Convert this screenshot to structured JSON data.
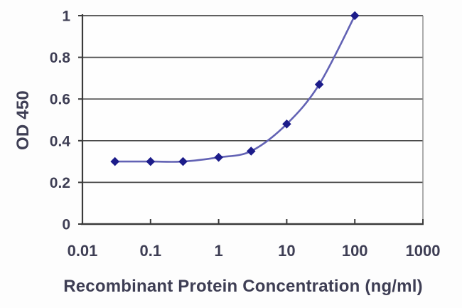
{
  "chart_data": {
    "type": "line",
    "title": "",
    "xlabel": "Recombinant Protein Concentration (ng/ml)",
    "ylabel": "OD 450",
    "x_scale": "log",
    "y_scale": "linear",
    "xlim": [
      0.01,
      1000
    ],
    "ylim": [
      0,
      1
    ],
    "x_tick_values": [
      0.01,
      0.1,
      1,
      10,
      100,
      1000
    ],
    "x_tick_labels": [
      "0.01",
      "0.1",
      "1",
      "10",
      "100",
      "1000"
    ],
    "y_tick_values": [
      0,
      0.2,
      0.4,
      0.6,
      0.8,
      1
    ],
    "y_tick_labels": [
      "0",
      "0.2",
      "0.4",
      "0.6",
      "0.8",
      "1"
    ],
    "grid": "horizontal",
    "legend": "none",
    "series": [
      {
        "name": "OD 450",
        "marker": "diamond",
        "x": [
          0.03,
          0.1,
          0.3,
          1,
          3,
          10,
          30,
          100
        ],
        "y": [
          0.3,
          0.3,
          0.3,
          0.32,
          0.35,
          0.48,
          0.67,
          1.0
        ]
      }
    ],
    "colors": {
      "line": "#6262b4",
      "marker": "#1c1c8a",
      "grid": "#4a4a4a",
      "axis": "#3a3a3a",
      "border": "#8a8a8a",
      "text": "#3e3e54",
      "plot_bg": "#fefefe"
    }
  }
}
